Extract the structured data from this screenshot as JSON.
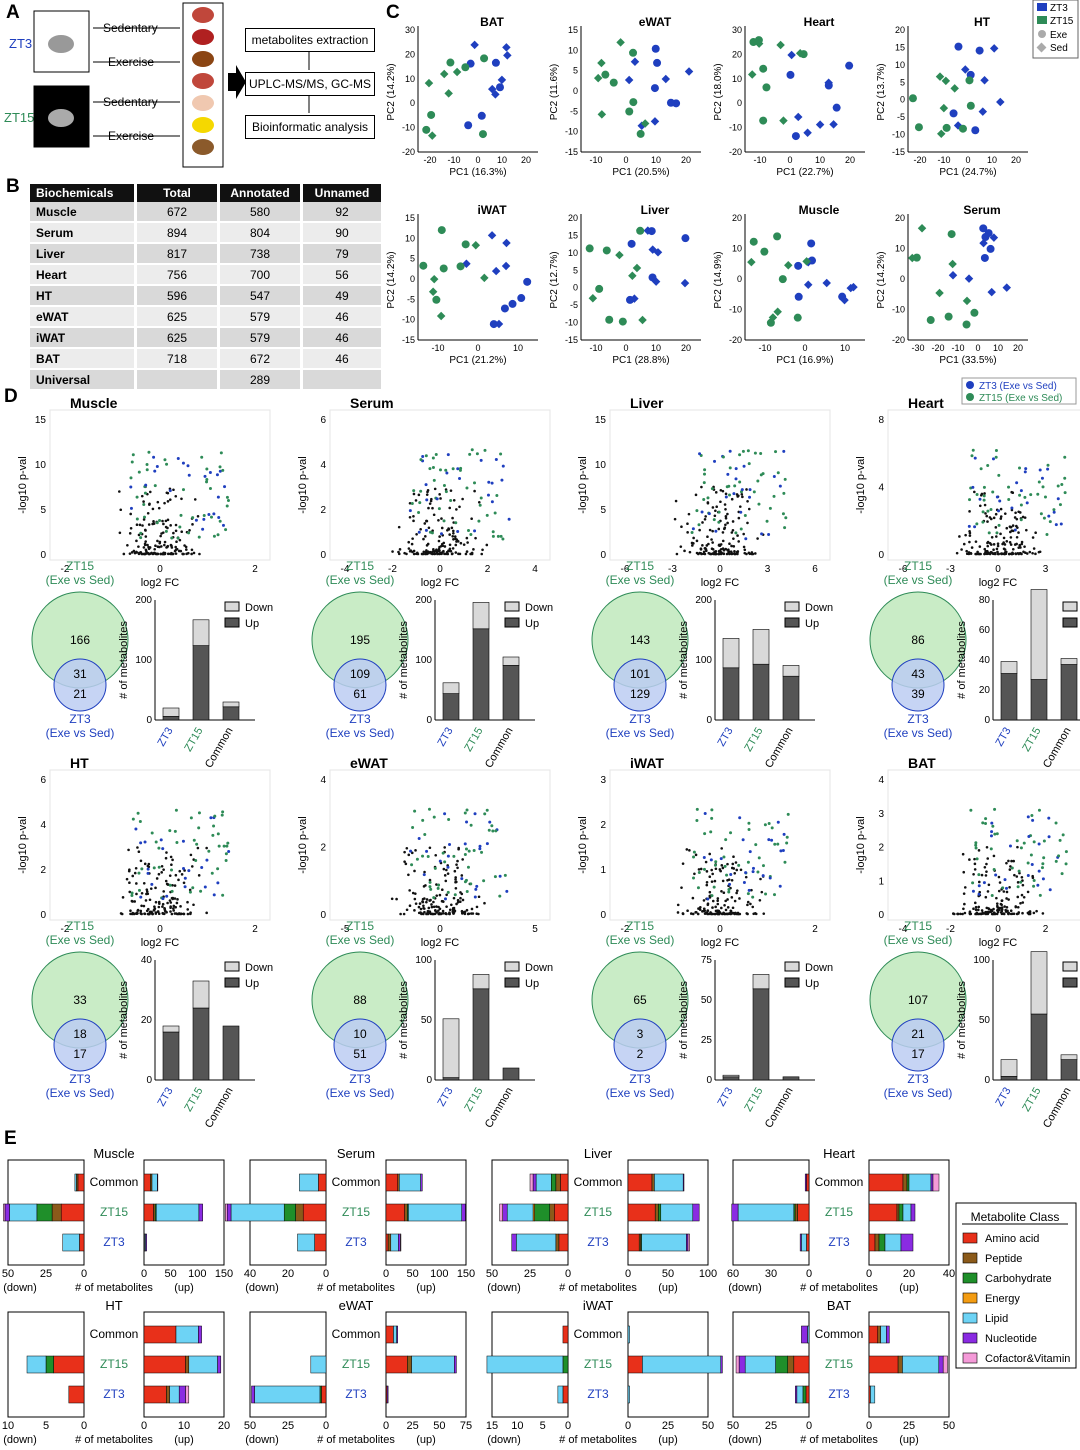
{
  "panels": {
    "A": "A",
    "B": "B",
    "C": "C",
    "D": "D",
    "E": "E"
  },
  "colors": {
    "blue": "#1f3fbf",
    "green": "#2e8b57",
    "venn_green": "#c9ecc6",
    "venn_blue": "#bccdf2",
    "down": "#d9d9d9",
    "up": "#555555"
  },
  "panelA": {
    "zt3": "ZT3",
    "zt15": "ZT15",
    "sed": "Sedentary",
    "exe": "Exercise",
    "steps": [
      "metabolites extraction",
      "UPLC-MS/MS, GC-MS",
      "Bioinformatic analysis"
    ]
  },
  "panelB": {
    "headers": [
      "Biochemicals",
      "Total",
      "Annotated",
      "Unnamed"
    ],
    "rows": [
      [
        "Muscle",
        "672",
        "580",
        "92"
      ],
      [
        "Serum",
        "894",
        "804",
        "90"
      ],
      [
        "Liver",
        "817",
        "738",
        "79"
      ],
      [
        "Heart",
        "756",
        "700",
        "56"
      ],
      [
        "HT",
        "596",
        "547",
        "49"
      ],
      [
        "eWAT",
        "625",
        "579",
        "46"
      ],
      [
        "iWAT",
        "625",
        "579",
        "46"
      ],
      [
        "BAT",
        "718",
        "672",
        "46"
      ],
      [
        "Universal",
        "",
        "289",
        ""
      ]
    ]
  },
  "panelC": {
    "legend": [
      "ZT3",
      "ZT15",
      "Exe",
      "Sed"
    ],
    "ylabel_prefix": "PC2",
    "plots": [
      {
        "title": "BAT",
        "x": "PC1 (16.3%)",
        "y": "PC2 (14.2%)",
        "xt": [
          "-20",
          "-10",
          "0",
          "10",
          "20"
        ],
        "yt": [
          "30",
          "20",
          "10",
          "0",
          "-10",
          "-20"
        ]
      },
      {
        "title": "eWAT",
        "x": "PC1 (20.5%)",
        "y": "PC2 (11.6%)",
        "xt": [
          "-10",
          "0",
          "10",
          "20"
        ],
        "yt": [
          "15",
          "10",
          "5",
          "0",
          "-5",
          "-10",
          "-15"
        ]
      },
      {
        "title": "Heart",
        "x": "PC1 (22.7%)",
        "y": "PC2 (18.0%)",
        "xt": [
          "-10",
          "0",
          "10",
          "20"
        ],
        "yt": [
          "30",
          "20",
          "10",
          "0",
          "-10",
          "-20"
        ]
      },
      {
        "title": "HT",
        "x": "PC1 (24.7%)",
        "y": "PC2 (13.7%)",
        "xt": [
          "-20",
          "-10",
          "0",
          "10",
          "20"
        ],
        "yt": [
          "20",
          "15",
          "10",
          "5",
          "0",
          "-5",
          "-10",
          "-15"
        ]
      },
      {
        "title": "iWAT",
        "x": "PC1 (21.2%)",
        "y": "PC2 (14.2%)",
        "xt": [
          "-10",
          "0",
          "10"
        ],
        "yt": [
          "15",
          "10",
          "5",
          "0",
          "-5",
          "-10",
          "-15"
        ]
      },
      {
        "title": "Liver",
        "x": "PC1 (28.8%)",
        "y": "PC2 (12.7%)",
        "xt": [
          "-10",
          "0",
          "10",
          "20"
        ],
        "yt": [
          "20",
          "15",
          "10",
          "5",
          "0",
          "-5",
          "-10",
          "-15"
        ]
      },
      {
        "title": "Muscle",
        "x": "PC1 (16.9%)",
        "y": "PC2 (14.9%)",
        "xt": [
          "-10",
          "0",
          "10"
        ],
        "yt": [
          "20",
          "10",
          "0",
          "-10",
          "-20"
        ]
      },
      {
        "title": "Serum",
        "x": "PC1 (33.5%)",
        "y": "PC2 (14.2%)",
        "xt": [
          "-30",
          "-20",
          "-10",
          "0",
          "10",
          "20"
        ],
        "yt": [
          "20",
          "10",
          "0",
          "-10",
          "-20"
        ]
      }
    ]
  },
  "panelD": {
    "legend": [
      "ZT3 (Exe vs Sed)",
      "ZT15 (Exe vs Sed)"
    ],
    "ylabel": "-log10 p-val",
    "xlabel": "log2 FC",
    "venn_top": "ZT15",
    "venn_top2": "(Exe vs Sed)",
    "venn_bot": "ZT3",
    "venn_bot2": "(Exe vs Sed)",
    "bar_ylabel": "# of metabolites",
    "bar_cats": [
      "ZT3",
      "ZT15",
      "Common"
    ],
    "bar_legend": [
      "Down",
      "Up"
    ],
    "tissues": [
      {
        "name": "Muscle",
        "xt": [
          "-2",
          "0",
          "2"
        ],
        "yt": [
          "0",
          "5",
          "10",
          "15"
        ],
        "venn": [
          "166",
          "31",
          "21"
        ],
        "bymax": "200",
        "byt": [
          "0",
          "100",
          "200"
        ],
        "bars": [
          [
            6,
            14
          ],
          [
            124,
            43
          ],
          [
            22,
            8
          ]
        ]
      },
      {
        "name": "Serum",
        "xt": [
          "-4",
          "-2",
          "0",
          "2",
          "4"
        ],
        "yt": [
          "0",
          "2",
          "4",
          "6"
        ],
        "venn": [
          "195",
          "109",
          "61"
        ],
        "bymax": "200",
        "byt": [
          "0",
          "100",
          "200"
        ],
        "bars": [
          [
            44,
            18
          ],
          [
            152,
            44
          ],
          [
            91,
            14
          ]
        ]
      },
      {
        "name": "Liver",
        "xt": [
          "-6",
          "-3",
          "0",
          "3",
          "6"
        ],
        "yt": [
          "0",
          "5",
          "10",
          "15"
        ],
        "venn": [
          "143",
          "101",
          "129"
        ],
        "bymax": "200",
        "byt": [
          "0",
          "100",
          "200"
        ],
        "bars": [
          [
            87,
            49
          ],
          [
            93,
            58
          ],
          [
            73,
            18
          ]
        ]
      },
      {
        "name": "Heart",
        "xt": [
          "-6",
          "-3",
          "0",
          "3",
          "6"
        ],
        "yt": [
          "0",
          "4",
          "8"
        ],
        "venn": [
          "86",
          "43",
          "39"
        ],
        "bymax": "80",
        "byt": [
          "0",
          "20",
          "40",
          "60",
          "80"
        ],
        "bars": [
          [
            31,
            8
          ],
          [
            27,
            60
          ],
          [
            37,
            4
          ]
        ]
      },
      {
        "name": "HT",
        "xt": [
          "-2",
          "0",
          "2"
        ],
        "yt": [
          "0",
          "2",
          "4",
          "6"
        ],
        "venn": [
          "33",
          "18",
          "17"
        ],
        "bymax": "40",
        "byt": [
          "0",
          "20",
          "40"
        ],
        "bars": [
          [
            16,
            2
          ],
          [
            24,
            9
          ],
          [
            18,
            0
          ]
        ]
      },
      {
        "name": "eWAT",
        "xt": [
          "-5",
          "0",
          "5"
        ],
        "yt": [
          "0",
          "2",
          "4"
        ],
        "venn": [
          "88",
          "10",
          "51"
        ],
        "bymax": "100",
        "byt": [
          "0",
          "50",
          "100"
        ],
        "bars": [
          [
            2,
            49
          ],
          [
            76,
            12
          ],
          [
            10,
            0
          ]
        ]
      },
      {
        "name": "iWAT",
        "xt": [
          "-2",
          "0",
          "2"
        ],
        "yt": [
          "0",
          "1",
          "2",
          "3"
        ],
        "venn": [
          "65",
          "3",
          "2"
        ],
        "bymax": "75",
        "byt": [
          "0",
          "25",
          "50",
          "75"
        ],
        "bars": [
          [
            2,
            1
          ],
          [
            57,
            9
          ],
          [
            2,
            0
          ]
        ]
      },
      {
        "name": "BAT",
        "xt": [
          "-4",
          "-2",
          "0",
          "2",
          "4"
        ],
        "yt": [
          "0",
          "1",
          "2",
          "3",
          "4"
        ],
        "venn": [
          "107",
          "21",
          "17"
        ],
        "bymax": "100",
        "byt": [
          "0",
          "50",
          "100"
        ],
        "bars": [
          [
            3,
            14
          ],
          [
            55,
            52
          ],
          [
            17,
            4
          ]
        ]
      }
    ]
  },
  "panelE": {
    "legend_title": "Metabolite Class",
    "classes": [
      "Amino acid",
      "Peptide",
      "Carbohydrate",
      "Energy",
      "Lipid",
      "Nucleotide",
      "Cofactor&Vitamin"
    ],
    "class_colors": [
      "#e8301a",
      "#8b5a1a",
      "#1f8f2a",
      "#f39c12",
      "#6dd3f5",
      "#8a2be2",
      "#f49ad8"
    ],
    "rows": [
      "Common",
      "ZT15",
      "ZT3"
    ],
    "down_label": "(down)",
    "mid_label": "# of metabolites",
    "up_label": "(up)",
    "plots": [
      {
        "name": "Muscle",
        "dmax": 50,
        "dt": [
          "50",
          "25",
          "0"
        ],
        "umax": 150,
        "ut": [
          "0",
          "50",
          "100",
          "150"
        ],
        "down": [
          [
            4,
            1,
            0,
            0,
            1,
            0,
            0
          ],
          [
            15,
            6,
            10,
            0,
            18,
            3,
            1
          ],
          [
            3,
            0,
            0,
            0,
            11,
            0,
            0
          ]
        ],
        "up": [
          [
            12,
            3,
            0,
            0,
            10,
            1,
            0
          ],
          [
            18,
            3,
            2,
            0,
            80,
            7,
            0
          ],
          [
            1,
            0,
            0,
            0,
            2,
            2,
            0
          ]
        ]
      },
      {
        "name": "Serum",
        "dmax": 40,
        "dt": [
          "40",
          "20",
          "0"
        ],
        "umax": 150,
        "ut": [
          "0",
          "50",
          "100",
          "150"
        ],
        "down": [
          [
            4,
            0,
            0,
            0,
            10,
            0,
            0
          ],
          [
            12,
            4,
            6,
            0,
            28,
            2,
            1
          ],
          [
            6,
            0,
            0,
            0,
            9,
            0,
            0
          ]
        ],
        "up": [
          [
            22,
            3,
            0,
            0,
            40,
            3,
            0
          ],
          [
            35,
            5,
            2,
            0,
            100,
            7,
            0
          ],
          [
            4,
            5,
            0,
            0,
            14,
            4,
            1
          ]
        ]
      },
      {
        "name": "Liver",
        "dmax": 50,
        "dt": [
          "50",
          "25",
          "0"
        ],
        "umax": 100,
        "ut": [
          "0",
          "50",
          "100"
        ],
        "down": [
          [
            5,
            3,
            3,
            0,
            10,
            2,
            2
          ],
          [
            9,
            3,
            10,
            1,
            17,
            3,
            2
          ],
          [
            6,
            2,
            0,
            0,
            26,
            3,
            0
          ]
        ],
        "up": [
          [
            30,
            3,
            0,
            0,
            36,
            1,
            0
          ],
          [
            34,
            4,
            3,
            0,
            40,
            8,
            0
          ],
          [
            14,
            2,
            1,
            0,
            56,
            2,
            2
          ]
        ]
      },
      {
        "name": "Heart",
        "dmax": 60,
        "dt": [
          "60",
          "30",
          "0"
        ],
        "umax": 40,
        "ut": [
          "0",
          "20",
          "40"
        ],
        "down": [
          [
            2,
            0,
            0,
            0,
            0,
            1,
            0
          ],
          [
            9,
            2,
            1,
            0,
            44,
            5,
            0
          ],
          [
            2,
            0,
            0,
            0,
            4,
            1,
            0
          ]
        ],
        "up": [
          [
            17,
            2,
            1,
            0,
            11,
            1,
            3
          ],
          [
            14,
            1,
            2,
            0,
            4,
            2,
            0
          ],
          [
            3,
            2,
            3,
            0,
            8,
            6,
            0
          ]
        ]
      },
      {
        "name": "HT",
        "dmax": 10,
        "dt": [
          "10",
          "5",
          "0"
        ],
        "umax": 25,
        "ut": [
          "0",
          "10",
          "20"
        ],
        "down": [
          [
            0,
            0,
            0,
            0,
            0,
            0,
            0
          ],
          [
            4,
            0,
            1,
            0,
            2.5,
            0,
            0
          ],
          [
            2,
            0,
            0,
            0,
            0,
            0,
            0
          ]
        ],
        "up": [
          [
            10,
            0,
            0,
            0,
            7,
            1,
            0
          ],
          [
            13,
            1,
            0,
            0,
            9,
            1,
            0
          ],
          [
            7,
            1,
            0,
            0,
            3,
            2,
            1
          ]
        ]
      },
      {
        "name": "eWAT",
        "dmax": 50,
        "dt": [
          "50",
          "25",
          "0"
        ],
        "umax": 75,
        "ut": [
          "0",
          "25",
          "50",
          "75"
        ],
        "down": [
          [
            0,
            0,
            0,
            0,
            0,
            0,
            0
          ],
          [
            0,
            0,
            0,
            0,
            10,
            0,
            0
          ],
          [
            3,
            0,
            1,
            0,
            43,
            2,
            0
          ]
        ],
        "up": [
          [
            7,
            0,
            0,
            0,
            3,
            1,
            0
          ],
          [
            20,
            4,
            0,
            0,
            40,
            2,
            0
          ],
          [
            1,
            0,
            0,
            0,
            0,
            1,
            0
          ]
        ]
      },
      {
        "name": "iWAT",
        "dmax": 15,
        "dt": [
          "15",
          "10",
          "5",
          "0"
        ],
        "umax": 50,
        "ut": [
          "0",
          "25",
          "50"
        ],
        "down": [
          [
            1,
            0,
            0,
            0,
            0,
            0,
            0
          ],
          [
            0,
            0,
            1,
            0,
            15,
            0,
            0
          ],
          [
            1,
            0,
            0,
            0,
            1,
            0,
            0
          ]
        ],
        "up": [
          [
            0,
            0,
            0,
            0,
            1,
            0,
            0
          ],
          [
            9,
            0,
            0,
            0,
            49,
            1,
            0
          ],
          [
            0,
            0,
            0,
            0,
            1,
            0,
            0
          ]
        ]
      },
      {
        "name": "BAT",
        "dmax": 50,
        "dt": [
          "50",
          "25",
          "0"
        ],
        "umax": 55,
        "ut": [
          "0",
          "25",
          "50"
        ],
        "down": [
          [
            0,
            0,
            0,
            0,
            1,
            4,
            0
          ],
          [
            10,
            4,
            8,
            0,
            20,
            4,
            2
          ],
          [
            2,
            0,
            2,
            0,
            4,
            1,
            0
          ]
        ],
        "up": [
          [
            6,
            2,
            0,
            0,
            4,
            2,
            0
          ],
          [
            20,
            3,
            0,
            0,
            25,
            3,
            3
          ],
          [
            1,
            0,
            0,
            0,
            3,
            0,
            0
          ]
        ]
      }
    ]
  }
}
